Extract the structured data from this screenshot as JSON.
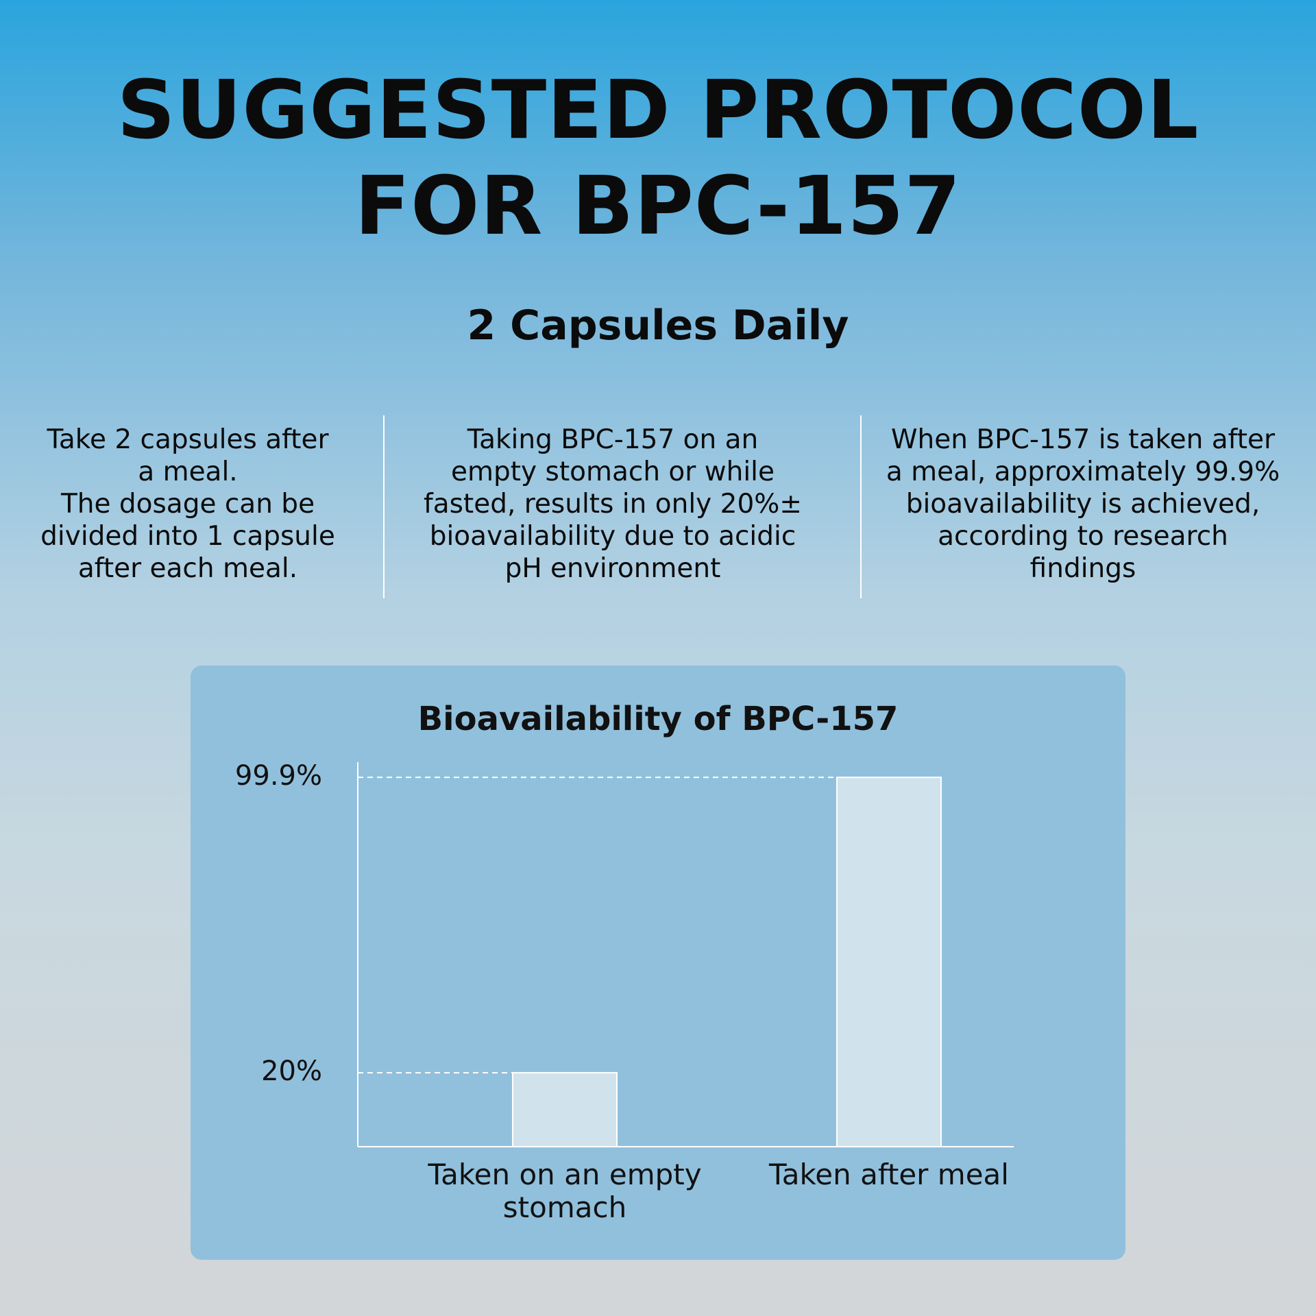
{
  "header": {
    "title_lines": [
      "SUGGESTED PROTOCOL",
      "FOR BPC-157"
    ],
    "subtitle": "2 Capsules Daily"
  },
  "columns": [
    [
      "Take 2 capsules after",
      "a meal.",
      "The dosage can be",
      "divided into 1 capsule",
      "after each meal."
    ],
    [
      "Taking BPC-157 on an",
      "empty stomach or while",
      "fasted, results in only 20%±",
      "bioavailability due to acidic",
      "pH environment"
    ],
    [
      "When BPC-157 is taken after",
      "a meal, approximately 99.9%",
      "bioavailability is achieved,",
      "according to research",
      "findings"
    ]
  ],
  "chart_data": {
    "type": "bar",
    "title": "Bioavailability of BPC-157",
    "categories": [
      "Taken on an empty stomach",
      "Taken after meal"
    ],
    "values": [
      20,
      99.9
    ],
    "color": "#d0e2ec",
    "ylim": [
      0,
      104
    ],
    "yticks": [
      {
        "value": 20,
        "label": "20%"
      },
      {
        "value": 99.9,
        "label": "99.9%"
      }
    ],
    "grid": true
  }
}
